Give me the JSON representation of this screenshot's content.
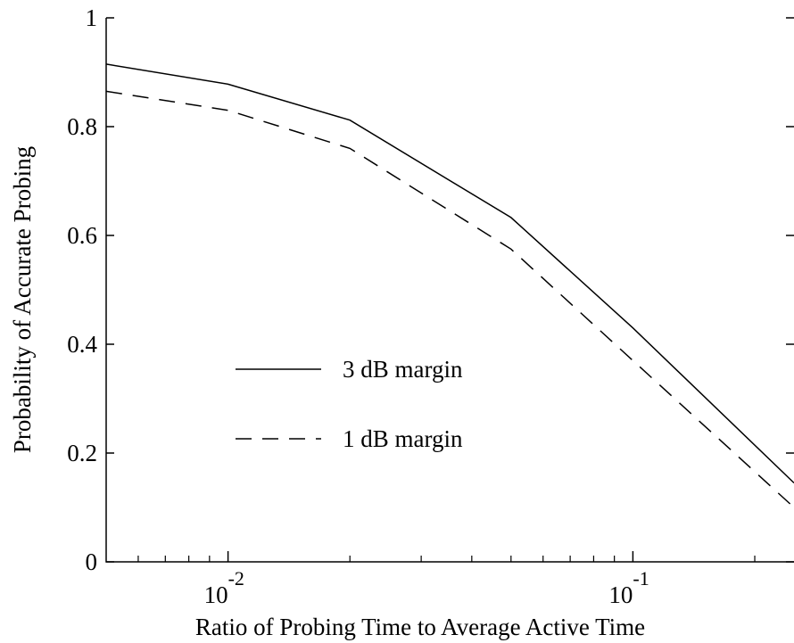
{
  "chart_data": {
    "type": "line",
    "xlabel": "Ratio of Probing Time to Average Active Time",
    "ylabel": "Probability of Accurate Probing",
    "xscale": "log",
    "xlim": [
      0.005,
      0.25
    ],
    "ylim": [
      0,
      1
    ],
    "grid": false,
    "legend_position": "center-left",
    "x_ticks": [
      {
        "value": 0.01,
        "base": "10",
        "exp": "-2"
      },
      {
        "value": 0.1,
        "base": "10",
        "exp": "-1"
      }
    ],
    "x_minor_ticks": [
      0.006,
      0.007,
      0.008,
      0.009,
      0.02,
      0.03,
      0.04,
      0.05,
      0.06,
      0.07,
      0.08,
      0.09,
      0.2
    ],
    "y_ticks": [
      {
        "value": 0,
        "label": "0"
      },
      {
        "value": 0.2,
        "label": "0.2"
      },
      {
        "value": 0.4,
        "label": "0.4"
      },
      {
        "value": 0.6,
        "label": "0.6"
      },
      {
        "value": 0.8,
        "label": "0.8"
      },
      {
        "value": 1,
        "label": "1"
      }
    ],
    "series": [
      {
        "name": "3 dB margin",
        "dash": "solid",
        "color": "#000000",
        "x": [
          0.005,
          0.01,
          0.02,
          0.05,
          0.1,
          0.25
        ],
        "y": [
          0.915,
          0.878,
          0.812,
          0.633,
          0.43,
          0.145
        ]
      },
      {
        "name": "1 dB margin",
        "dash": "dashed",
        "color": "#000000",
        "x": [
          0.005,
          0.01,
          0.02,
          0.05,
          0.1,
          0.25
        ],
        "y": [
          0.865,
          0.83,
          0.76,
          0.575,
          0.37,
          0.1
        ]
      }
    ]
  }
}
